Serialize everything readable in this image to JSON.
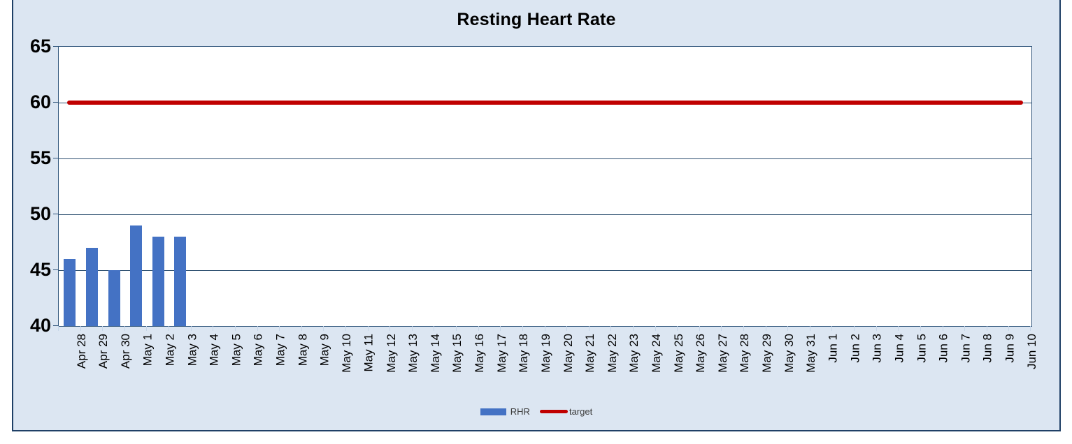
{
  "chart": {
    "title": "Resting Heart Rate",
    "colors": {
      "bar": "#4472C4",
      "target_line": "#C00000",
      "chart_background": "#dce6f2",
      "plot_background": "#ffffff",
      "frame_border": "#1f4066",
      "gridline": "#2e5070",
      "text": "#000000"
    },
    "legend": {
      "rhr_label": "RHR",
      "target_label": "target"
    }
  },
  "chart_data": {
    "type": "bar",
    "title": "Resting Heart Rate",
    "categories": [
      "Apr 28",
      "Apr 29",
      "Apr 30",
      "May 1",
      "May 2",
      "May 3",
      "May 4",
      "May 5",
      "May 6",
      "May 7",
      "May 8",
      "May 9",
      "May 10",
      "May 11",
      "May 12",
      "May 13",
      "May 14",
      "May 15",
      "May 16",
      "May 17",
      "May 18",
      "May 19",
      "May 20",
      "May 21",
      "May 22",
      "May 23",
      "May 24",
      "May 25",
      "May 26",
      "May 27",
      "May 28",
      "May 29",
      "May 30",
      "May 31",
      "Jun 1",
      "Jun 2",
      "Jun 3",
      "Jun 4",
      "Jun 5",
      "Jun 6",
      "Jun 7",
      "Jun 8",
      "Jun 9",
      "Jun 10"
    ],
    "series": [
      {
        "name": "RHR",
        "type": "bar",
        "color": "#4472C4",
        "values": [
          46,
          47,
          45,
          49,
          48,
          48,
          null,
          null,
          null,
          null,
          null,
          null,
          null,
          null,
          null,
          null,
          null,
          null,
          null,
          null,
          null,
          null,
          null,
          null,
          null,
          null,
          null,
          null,
          null,
          null,
          null,
          null,
          null,
          null,
          null,
          null,
          null,
          null,
          null,
          null,
          null,
          null,
          null,
          null
        ]
      },
      {
        "name": "target",
        "type": "line",
        "color": "#C00000",
        "values": [
          60,
          60,
          60,
          60,
          60,
          60,
          60,
          60,
          60,
          60,
          60,
          60,
          60,
          60,
          60,
          60,
          60,
          60,
          60,
          60,
          60,
          60,
          60,
          60,
          60,
          60,
          60,
          60,
          60,
          60,
          60,
          60,
          60,
          60,
          60,
          60,
          60,
          60,
          60,
          60,
          60,
          60,
          60,
          60
        ]
      }
    ],
    "xlabel": "",
    "ylabel": "",
    "ylim": [
      40,
      65
    ],
    "yticks": [
      65,
      60,
      55,
      50,
      45,
      40
    ],
    "grid": true,
    "legend_position": "bottom",
    "x_label_rotation": -90
  }
}
